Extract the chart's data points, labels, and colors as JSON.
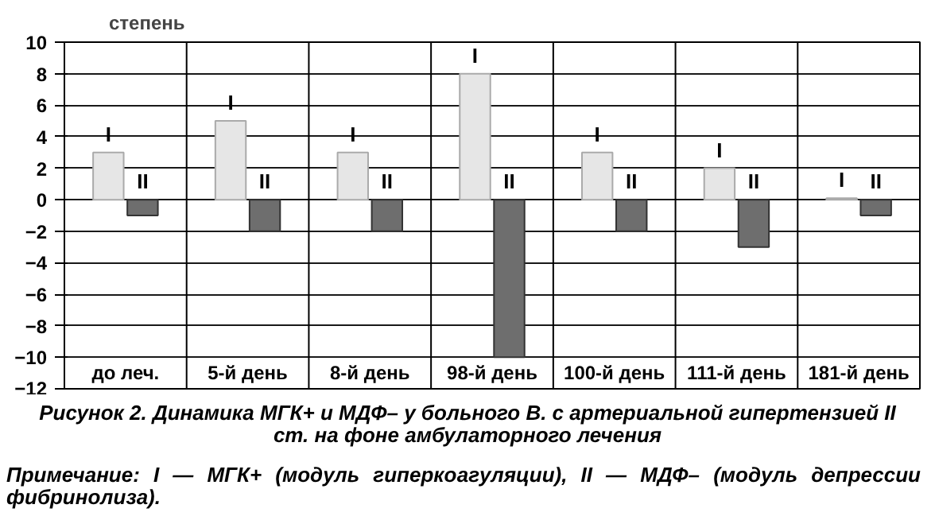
{
  "chart_data": {
    "type": "bar",
    "title": "Рисунок 2. Динамика МГК+ и МДФ– у больного В. с артериальной гипертензией II ст. на фоне амбулаторного лечения",
    "ylabel": "степень",
    "categories": [
      "до леч.",
      "5-й день",
      "8-й день",
      "98-й день",
      "100-й день",
      "111-й день",
      "181-й день"
    ],
    "series": [
      {
        "name": "I",
        "color": "#e6e6e6",
        "values": [
          3,
          5,
          3,
          8,
          3,
          2,
          0.1
        ]
      },
      {
        "name": "II",
        "color": "#6e6e6e",
        "values": [
          -1,
          -2,
          -2,
          -10,
          -2,
          -3,
          -1
        ]
      }
    ],
    "ylim": [
      -12,
      10
    ],
    "yticks": [
      -12,
      -10,
      -8,
      -6,
      -4,
      -2,
      0,
      2,
      4,
      6,
      8,
      10
    ],
    "grid": true,
    "annotations": [
      "Примечание: I — МГК+ (модуль гиперкоагуляции), II — МДФ– (модуль депрессии фибринолиза)."
    ]
  }
}
